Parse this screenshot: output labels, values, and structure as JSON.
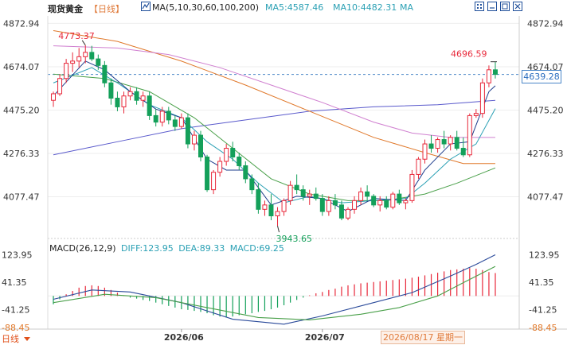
{
  "toolbar": {
    "title": "现货黄金",
    "period": "【日线】",
    "ma_label": "MA(5,10,30,60,100,200)",
    "ma5": "MA5:4587.46",
    "ma10": "MA10:4482.31",
    "ma_more": "MA",
    "window_buttons": [
      "grid-icon",
      "minimize-icon",
      "restore-icon",
      "close-icon"
    ]
  },
  "price_axis": {
    "ticks": [
      "4872.94",
      "4674.07",
      "4475.20",
      "4276.33",
      "4077.47"
    ],
    "current": "4639.28"
  },
  "annotations": {
    "high": "4773.37",
    "recent_high": "4696.59",
    "low": "3943.65"
  },
  "macd": {
    "label": "MACD(26,12,9)",
    "diff": "DIFF:123.95",
    "dea": "DEA:89.33",
    "macd": "MACD:69.25",
    "ticks": [
      "123.95",
      "41.35",
      "-41.25",
      "-88.45"
    ]
  },
  "time_axis": [
    "2026/06",
    "2026/07"
  ],
  "bottom": {
    "period_button": "日线",
    "cursor_date": "2026/08/17 星期一"
  },
  "colors": {
    "up": "#e8283a",
    "down": "#14a05a",
    "ma5": "#1e3c8c",
    "ma10": "#2aa0b4",
    "ma30": "#4aa04a",
    "ma60": "#d080d0",
    "ma100": "#e0782a",
    "ma200": "#5a5acc",
    "accent": "#2a6dbf"
  },
  "chart_data": {
    "type": "candlestick",
    "price_range": [
      3930,
      4900
    ],
    "candles": [
      {
        "o": 4520,
        "h": 4560,
        "l": 4490,
        "c": 4550
      },
      {
        "o": 4550,
        "h": 4640,
        "l": 4540,
        "c": 4620
      },
      {
        "o": 4620,
        "h": 4710,
        "l": 4600,
        "c": 4690
      },
      {
        "o": 4690,
        "h": 4740,
        "l": 4650,
        "c": 4700
      },
      {
        "o": 4700,
        "h": 4760,
        "l": 4670,
        "c": 4720
      },
      {
        "o": 4720,
        "h": 4773,
        "l": 4690,
        "c": 4740
      },
      {
        "o": 4740,
        "h": 4770,
        "l": 4700,
        "c": 4710
      },
      {
        "o": 4710,
        "h": 4730,
        "l": 4660,
        "c": 4680
      },
      {
        "o": 4680,
        "h": 4700,
        "l": 4580,
        "c": 4600
      },
      {
        "o": 4600,
        "h": 4620,
        "l": 4500,
        "c": 4530
      },
      {
        "o": 4530,
        "h": 4560,
        "l": 4470,
        "c": 4490
      },
      {
        "o": 4490,
        "h": 4560,
        "l": 4460,
        "c": 4540
      },
      {
        "o": 4540,
        "h": 4580,
        "l": 4520,
        "c": 4560
      },
      {
        "o": 4560,
        "h": 4580,
        "l": 4500,
        "c": 4520
      },
      {
        "o": 4520,
        "h": 4560,
        "l": 4490,
        "c": 4540
      },
      {
        "o": 4540,
        "h": 4560,
        "l": 4430,
        "c": 4450
      },
      {
        "o": 4450,
        "h": 4480,
        "l": 4400,
        "c": 4420
      },
      {
        "o": 4420,
        "h": 4490,
        "l": 4400,
        "c": 4470
      },
      {
        "o": 4470,
        "h": 4490,
        "l": 4410,
        "c": 4430
      },
      {
        "o": 4430,
        "h": 4450,
        "l": 4380,
        "c": 4400
      },
      {
        "o": 4400,
        "h": 4460,
        "l": 4390,
        "c": 4440
      },
      {
        "o": 4440,
        "h": 4460,
        "l": 4300,
        "c": 4320
      },
      {
        "o": 4320,
        "h": 4380,
        "l": 4290,
        "c": 4360
      },
      {
        "o": 4360,
        "h": 4380,
        "l": 4240,
        "c": 4260
      },
      {
        "o": 4260,
        "h": 4270,
        "l": 4100,
        "c": 4110
      },
      {
        "o": 4110,
        "h": 4200,
        "l": 4090,
        "c": 4190
      },
      {
        "o": 4190,
        "h": 4260,
        "l": 4170,
        "c": 4240
      },
      {
        "o": 4240,
        "h": 4320,
        "l": 4220,
        "c": 4300
      },
      {
        "o": 4300,
        "h": 4330,
        "l": 4240,
        "c": 4260
      },
      {
        "o": 4260,
        "h": 4280,
        "l": 4200,
        "c": 4220
      },
      {
        "o": 4220,
        "h": 4240,
        "l": 4140,
        "c": 4160
      },
      {
        "o": 4160,
        "h": 4180,
        "l": 4090,
        "c": 4110
      },
      {
        "o": 4110,
        "h": 4140,
        "l": 4000,
        "c": 4020
      },
      {
        "o": 4020,
        "h": 4060,
        "l": 3990,
        "c": 4040
      },
      {
        "o": 4040,
        "h": 4090,
        "l": 3970,
        "c": 3990
      },
      {
        "o": 3990,
        "h": 4030,
        "l": 3944,
        "c": 4010
      },
      {
        "o": 4010,
        "h": 4070,
        "l": 3990,
        "c": 4060
      },
      {
        "o": 4060,
        "h": 4150,
        "l": 4040,
        "c": 4130
      },
      {
        "o": 4130,
        "h": 4180,
        "l": 4090,
        "c": 4110
      },
      {
        "o": 4110,
        "h": 4130,
        "l": 4060,
        "c": 4080
      },
      {
        "o": 4080,
        "h": 4110,
        "l": 4040,
        "c": 4090
      },
      {
        "o": 4090,
        "h": 4120,
        "l": 4060,
        "c": 4070
      },
      {
        "o": 4070,
        "h": 4090,
        "l": 3990,
        "c": 4010
      },
      {
        "o": 4010,
        "h": 4080,
        "l": 3990,
        "c": 4060
      },
      {
        "o": 4060,
        "h": 4090,
        "l": 4020,
        "c": 4040
      },
      {
        "o": 4040,
        "h": 4060,
        "l": 3970,
        "c": 3980
      },
      {
        "o": 3980,
        "h": 4030,
        "l": 3970,
        "c": 4020
      },
      {
        "o": 4020,
        "h": 4080,
        "l": 4000,
        "c": 4060
      },
      {
        "o": 4060,
        "h": 4120,
        "l": 4040,
        "c": 4100
      },
      {
        "o": 4100,
        "h": 4130,
        "l": 4060,
        "c": 4080
      },
      {
        "o": 4080,
        "h": 4090,
        "l": 4030,
        "c": 4040
      },
      {
        "o": 4040,
        "h": 4080,
        "l": 4010,
        "c": 4060
      },
      {
        "o": 4060,
        "h": 4080,
        "l": 4020,
        "c": 4030
      },
      {
        "o": 4030,
        "h": 4100,
        "l": 4020,
        "c": 4090
      },
      {
        "o": 4090,
        "h": 4110,
        "l": 4040,
        "c": 4050
      },
      {
        "o": 4050,
        "h": 4070,
        "l": 4020,
        "c": 4060
      },
      {
        "o": 4060,
        "h": 4200,
        "l": 4050,
        "c": 4180
      },
      {
        "o": 4180,
        "h": 4260,
        "l": 4160,
        "c": 4250
      },
      {
        "o": 4250,
        "h": 4340,
        "l": 4230,
        "c": 4320
      },
      {
        "o": 4320,
        "h": 4360,
        "l": 4280,
        "c": 4300
      },
      {
        "o": 4300,
        "h": 4350,
        "l": 4280,
        "c": 4340
      },
      {
        "o": 4340,
        "h": 4380,
        "l": 4300,
        "c": 4320
      },
      {
        "o": 4320,
        "h": 4360,
        "l": 4290,
        "c": 4350
      },
      {
        "o": 4350,
        "h": 4380,
        "l": 4290,
        "c": 4300
      },
      {
        "o": 4300,
        "h": 4350,
        "l": 4260,
        "c": 4270
      },
      {
        "o": 4270,
        "h": 4460,
        "l": 4260,
        "c": 4450
      },
      {
        "o": 4450,
        "h": 4480,
        "l": 4440,
        "c": 4460
      },
      {
        "o": 4460,
        "h": 4620,
        "l": 4440,
        "c": 4600
      },
      {
        "o": 4600,
        "h": 4680,
        "l": 4580,
        "c": 4660
      },
      {
        "o": 4660,
        "h": 4697,
        "l": 4620,
        "c": 4639
      }
    ],
    "ma5": [
      [
        0,
        4540
      ],
      [
        5,
        4700
      ],
      [
        8,
        4660
      ],
      [
        12,
        4560
      ],
      [
        16,
        4480
      ],
      [
        20,
        4440
      ],
      [
        24,
        4250
      ],
      [
        27,
        4200
      ],
      [
        30,
        4200
      ],
      [
        34,
        4040
      ],
      [
        38,
        4080
      ],
      [
        42,
        4070
      ],
      [
        46,
        4010
      ],
      [
        50,
        4070
      ],
      [
        55,
        4060
      ],
      [
        58,
        4200
      ],
      [
        62,
        4320
      ],
      [
        65,
        4330
      ],
      [
        68,
        4560
      ],
      [
        69,
        4587
      ]
    ],
    "ma10": [
      [
        0,
        4600
      ],
      [
        6,
        4670
      ],
      [
        10,
        4600
      ],
      [
        15,
        4500
      ],
      [
        20,
        4440
      ],
      [
        24,
        4330
      ],
      [
        28,
        4250
      ],
      [
        32,
        4140
      ],
      [
        36,
        4050
      ],
      [
        40,
        4080
      ],
      [
        45,
        4050
      ],
      [
        50,
        4060
      ],
      [
        55,
        4070
      ],
      [
        58,
        4140
      ],
      [
        62,
        4250
      ],
      [
        66,
        4320
      ],
      [
        69,
        4482
      ]
    ],
    "ma30": [
      [
        0,
        4640
      ],
      [
        8,
        4620
      ],
      [
        15,
        4560
      ],
      [
        22,
        4440
      ],
      [
        28,
        4300
      ],
      [
        34,
        4160
      ],
      [
        40,
        4090
      ],
      [
        46,
        4060
      ],
      [
        52,
        4060
      ],
      [
        58,
        4090
      ],
      [
        63,
        4140
      ],
      [
        69,
        4210
      ]
    ],
    "ma60": [
      [
        0,
        4770
      ],
      [
        10,
        4760
      ],
      [
        18,
        4730
      ],
      [
        26,
        4670
      ],
      [
        34,
        4590
      ],
      [
        42,
        4510
      ],
      [
        50,
        4420
      ],
      [
        56,
        4370
      ],
      [
        62,
        4350
      ],
      [
        69,
        4350
      ]
    ],
    "ma100": [
      [
        0,
        4840
      ],
      [
        10,
        4790
      ],
      [
        20,
        4700
      ],
      [
        30,
        4590
      ],
      [
        40,
        4470
      ],
      [
        50,
        4350
      ],
      [
        58,
        4280
      ],
      [
        64,
        4230
      ],
      [
        69,
        4230
      ]
    ],
    "ma200": [
      [
        0,
        4270
      ],
      [
        10,
        4330
      ],
      [
        20,
        4390
      ],
      [
        30,
        4430
      ],
      [
        40,
        4470
      ],
      [
        50,
        4490
      ],
      [
        60,
        4500
      ],
      [
        69,
        4520
      ]
    ],
    "macd_range": [
      -95,
      130
    ],
    "macd_hist": [
      -25,
      -10,
      5,
      15,
      25,
      30,
      32,
      30,
      25,
      18,
      10,
      2,
      -5,
      -8,
      -12,
      -15,
      -20,
      -25,
      -30,
      -35,
      -40,
      -42,
      -45,
      -48,
      -52,
      -58,
      -62,
      -65,
      -62,
      -58,
      -55,
      -52,
      -48,
      -45,
      -40,
      -35,
      -28,
      -20,
      -12,
      -5,
      2,
      8,
      12,
      18,
      22,
      28,
      32,
      35,
      38,
      40,
      42,
      44,
      46,
      48,
      50,
      52,
      55,
      58,
      62,
      66,
      70,
      74,
      78,
      80,
      82,
      84,
      82,
      78,
      72,
      69
    ],
    "macd_diff": [
      [
        0,
        -10
      ],
      [
        6,
        18
      ],
      [
        12,
        12
      ],
      [
        20,
        -20
      ],
      [
        28,
        -70
      ],
      [
        36,
        -85
      ],
      [
        42,
        -60
      ],
      [
        50,
        -20
      ],
      [
        56,
        10
      ],
      [
        62,
        60
      ],
      [
        66,
        95
      ],
      [
        69,
        124
      ]
    ],
    "macd_dea": [
      [
        0,
        -20
      ],
      [
        8,
        5
      ],
      [
        16,
        -5
      ],
      [
        24,
        -35
      ],
      [
        32,
        -65
      ],
      [
        40,
        -72
      ],
      [
        48,
        -55
      ],
      [
        54,
        -35
      ],
      [
        60,
        0
      ],
      [
        64,
        40
      ],
      [
        69,
        89
      ]
    ]
  }
}
